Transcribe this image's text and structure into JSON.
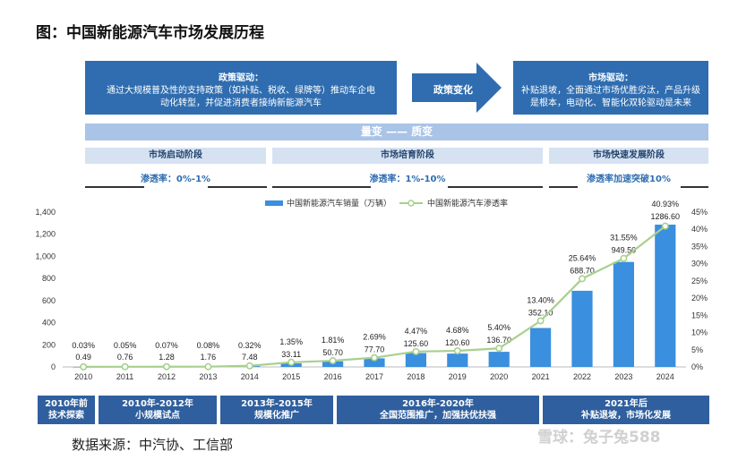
{
  "title": "图：中国新能源汽车市场发展历程",
  "policy_box": {
    "heading": "政策驱动：",
    "text": "通过大规模普及性的支持政策（如补贴、税收、绿牌等）推动车企电动化转型，并促进消费者接纳新能源汽车"
  },
  "arrow_label": "政策变化",
  "market_box": {
    "heading": "市场驱动：",
    "text": "补贴退坡，全面通过市场优胜劣汰，产品升级是根本，电动化、智能化双轮驱动是未来"
  },
  "band_label": "量变 —— 质变",
  "stages": [
    {
      "name": "市场启动阶段",
      "penetration": "渗透率：0%-1%"
    },
    {
      "name": "市场培育阶段",
      "penetration": "渗透率：1%-10%"
    },
    {
      "name": "市场快速发展阶段",
      "penetration": "渗透率加速突破10%"
    }
  ],
  "footer_phases": [
    {
      "period": "2010年前",
      "desc": "技术探索"
    },
    {
      "period": "2010年-2012年",
      "desc": "小规模试点"
    },
    {
      "period": "2013年-2015年",
      "desc": "规模化推广"
    },
    {
      "period": "2016年-2020年",
      "desc": "全国范围推广，加强扶优扶强"
    },
    {
      "period": "2021年后",
      "desc": "补贴退坡，市场化发展"
    }
  ],
  "source": "数据来源：中汽协、工信部",
  "watermark": "雪球：兔子兔588",
  "colors": {
    "bar": "#3a8fde",
    "line": "#a8d08d",
    "dark_box": "#2f6db0",
    "stage": "#d6e2f2",
    "band": "#a9c4e6"
  },
  "chart_data": {
    "type": "bar",
    "categories": [
      "2010",
      "2011",
      "2012",
      "2013",
      "2014",
      "2015",
      "2016",
      "2017",
      "2018",
      "2019",
      "2020",
      "2021",
      "2022",
      "2023",
      "2024"
    ],
    "series": [
      {
        "name": "中国新能源汽车销量（万辆）",
        "type": "bar",
        "axis": "left",
        "values": [
          0.49,
          0.76,
          1.28,
          1.76,
          7.48,
          33.11,
          50.7,
          77.7,
          125.6,
          120.6,
          136.7,
          352.1,
          688.7,
          949.5,
          1286.6
        ],
        "labels": [
          "0.49",
          "0.76",
          "1.28",
          "1.76",
          "7.48",
          "33.11",
          "50.70",
          "77.70",
          "125.60",
          "120.60",
          "136.70",
          "352.10",
          "688.70",
          "949.50",
          "1286.60"
        ]
      },
      {
        "name": "中国新能源汽车渗透率",
        "type": "line",
        "axis": "right",
        "values": [
          0.03,
          0.05,
          0.07,
          0.08,
          0.32,
          1.35,
          1.81,
          2.69,
          4.47,
          4.68,
          5.4,
          13.4,
          25.64,
          31.55,
          40.93
        ],
        "labels": [
          "0.03%",
          "0.05%",
          "0.07%",
          "0.08%",
          "0.32%",
          "1.35%",
          "1.81%",
          "2.69%",
          "4.47%",
          "4.68%",
          "5.40%",
          "13.40%",
          "25.64%",
          "31.55%",
          "40.93%"
        ]
      }
    ],
    "ylim": [
      0,
      1400
    ],
    "y2lim": [
      0,
      45
    ],
    "yticks": [
      "0",
      "200",
      "400",
      "600",
      "800",
      "1,000",
      "1,200",
      "1,400"
    ],
    "y2ticks": [
      "0%",
      "5%",
      "10%",
      "15%",
      "20%",
      "25%",
      "30%",
      "35%",
      "40%",
      "45%"
    ],
    "legend_position": "top-center",
    "grid": false
  }
}
